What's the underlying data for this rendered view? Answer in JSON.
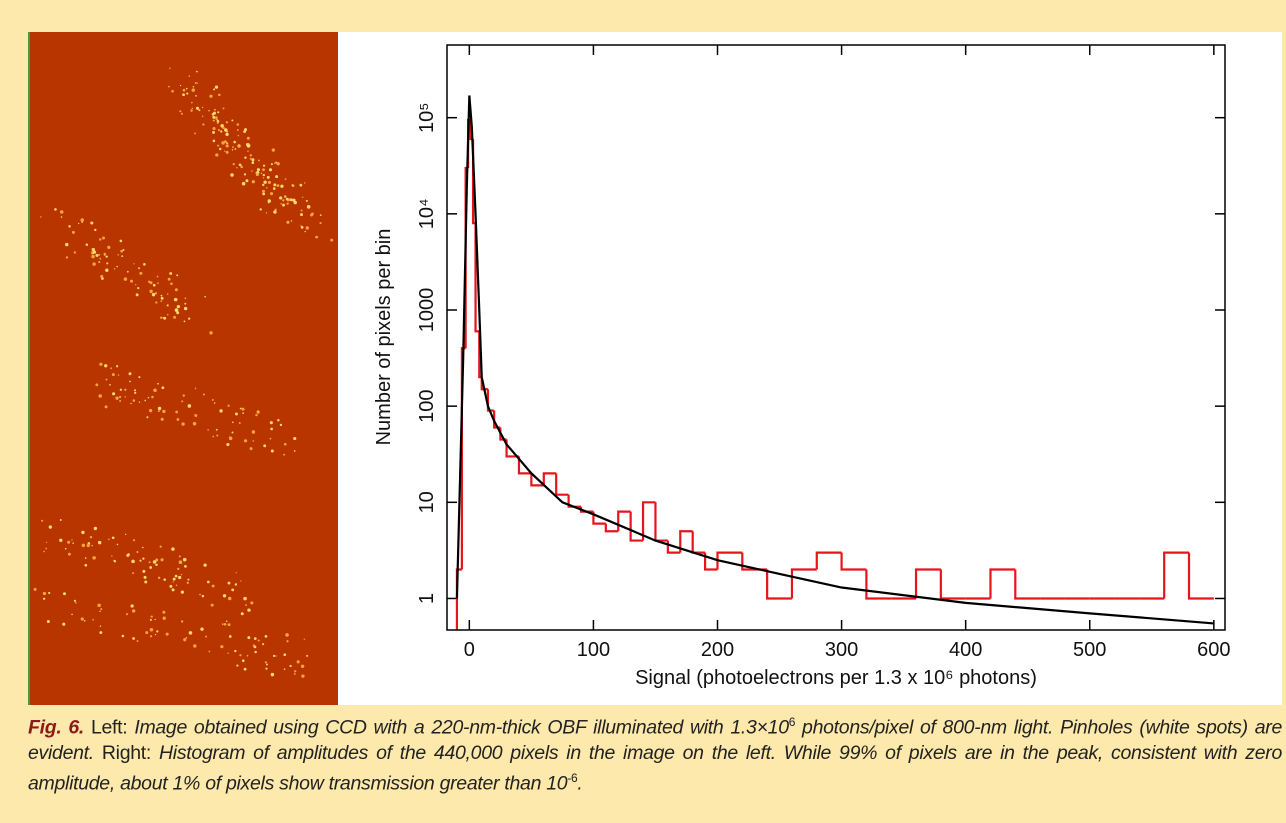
{
  "chart_data": {
    "type": "histogram",
    "xlabel": "Signal (photoelectrons per 1.3 x 10⁶ photons)",
    "ylabel": "Number of pixels per bin",
    "xlim": [
      -18,
      609
    ],
    "ylim": [
      0.47,
      570000
    ],
    "log_y": true,
    "xticks": [
      0,
      100,
      200,
      300,
      400,
      500,
      600
    ],
    "yticks": [
      1,
      10,
      100,
      1000,
      {
        "value": 10000,
        "label": "10⁴"
      },
      {
        "value": 100000,
        "label": "10⁵"
      }
    ],
    "color": "#e8141c",
    "bins": [
      -10,
      -6,
      -3,
      -1,
      1,
      3,
      5,
      8,
      10,
      15,
      20,
      25,
      30,
      40,
      50,
      60,
      70,
      80,
      90,
      100,
      110,
      120,
      130,
      140,
      150,
      160,
      170,
      180,
      190,
      200,
      220,
      240,
      260,
      280,
      300,
      320,
      340,
      360,
      380,
      400,
      420,
      440,
      460,
      480,
      500,
      520,
      540,
      560,
      580,
      600
    ],
    "values": [
      2,
      400,
      30000,
      95000,
      60000,
      8000,
      600,
      200,
      150,
      90,
      60,
      45,
      30,
      20,
      15,
      20,
      12,
      9,
      8,
      6,
      5,
      8,
      4,
      10,
      4,
      3,
      5,
      3,
      2,
      3,
      2,
      1,
      2,
      3,
      2,
      1,
      1,
      2,
      1,
      1,
      2,
      1,
      1,
      1,
      1,
      1,
      1,
      3,
      1
    ],
    "fit": {
      "type": "line",
      "color": "#000000",
      "x": [
        -10,
        -5,
        -2,
        0,
        2,
        5,
        8,
        10,
        15,
        20,
        30,
        50,
        75,
        100,
        150,
        200,
        250,
        300,
        400,
        500,
        600
      ],
      "values": [
        1,
        300,
        20000,
        170000,
        80000,
        10000,
        1000,
        200,
        100,
        70,
        40,
        20,
        10,
        7.5,
        4,
        2.5,
        1.8,
        1.3,
        0.9,
        0.7,
        0.55
      ]
    }
  },
  "caption": {
    "label": "Fig. 6.",
    "left_label": "Left:",
    "left_text": "Image obtained using CCD with a 220-nm-thick OBF illuminated with 1.3×10",
    "left_sup": "6",
    "left_text_2": "photons/pixel of 800-nm light. Pinholes (white spots) are evident.",
    "right_label": "Right:",
    "right_text": "Histogram of amplitudes of the 440,000 pixels in the image on the left. While 99% of pixels are in the peak, consistent with zero amplitude, about 1% of pixels show transmission greater than 10",
    "right_sup": "-6",
    "right_end": "."
  }
}
